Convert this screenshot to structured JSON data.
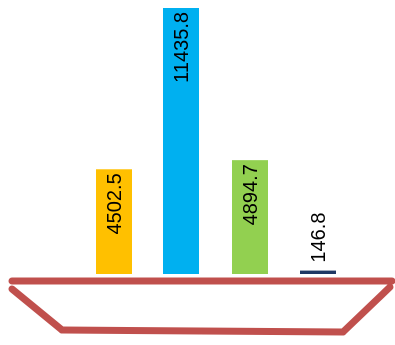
{
  "chart_data": {
    "type": "bar",
    "categories": [
      "",
      "",
      "",
      ""
    ],
    "values": [
      4502.5,
      11435.8,
      4894.7,
      146.8
    ],
    "value_labels": [
      "4502.5",
      "11435.8",
      "4894.7",
      "146.8"
    ],
    "colors": [
      "#FFC000",
      "#00B0F0",
      "#92D050",
      "#1F3864"
    ],
    "base_color": "#C0504D",
    "ylim": [
      0,
      11435.8
    ],
    "title": "",
    "xlabel": "",
    "ylabel": "",
    "grid": false,
    "legend": "none"
  }
}
